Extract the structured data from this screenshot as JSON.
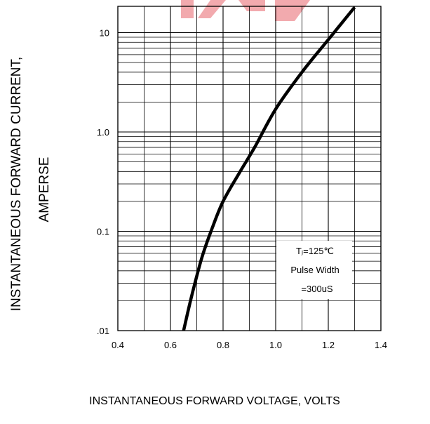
{
  "chart_data": {
    "type": "line",
    "title": "",
    "xlabel": "INSTANTANEOUS FORWARD VOLTAGE,  VOLTS",
    "ylabel_line1": "INSTANTANEOUS FORWARD CURRENT,",
    "ylabel_line2": "AMPERSE",
    "x_scale": "linear",
    "y_scale": "log",
    "xlim": [
      0.4,
      1.4
    ],
    "ylim": [
      0.01,
      20
    ],
    "x_ticks": [
      {
        "value": 0.4,
        "label": "0.4"
      },
      {
        "value": 0.6,
        "label": "0.6"
      },
      {
        "value": 0.8,
        "label": "0.8"
      },
      {
        "value": 1.0,
        "label": "1.0"
      },
      {
        "value": 1.2,
        "label": "1.2"
      },
      {
        "value": 1.4,
        "label": "1.4"
      }
    ],
    "y_ticks": [
      {
        "value": 0.01,
        "label": ".01"
      },
      {
        "value": 0.1,
        "label": "0.1"
      },
      {
        "value": 1,
        "label": "1.0"
      },
      {
        "value": 10,
        "label": "10"
      }
    ],
    "grid": true,
    "annotations": [
      {
        "text": "Tⱼ=125℃"
      },
      {
        "text": "Pulse Width"
      },
      {
        "text": "=300uS"
      }
    ],
    "series": [
      {
        "color": "#000000",
        "points": [
          {
            "x": 0.65,
            "y": 0.01
          },
          {
            "x": 0.68,
            "y": 0.022
          },
          {
            "x": 0.72,
            "y": 0.055
          },
          {
            "x": 0.76,
            "y": 0.11
          },
          {
            "x": 0.8,
            "y": 0.2
          },
          {
            "x": 0.86,
            "y": 0.38
          },
          {
            "x": 0.92,
            "y": 0.7
          },
          {
            "x": 1.0,
            "y": 1.7
          },
          {
            "x": 1.1,
            "y": 4.0
          },
          {
            "x": 1.2,
            "y": 8.5
          },
          {
            "x": 1.3,
            "y": 18.0
          }
        ]
      }
    ]
  },
  "colors": {
    "grid": "#000000",
    "curve": "#000000",
    "watermark": "#e8646c"
  }
}
